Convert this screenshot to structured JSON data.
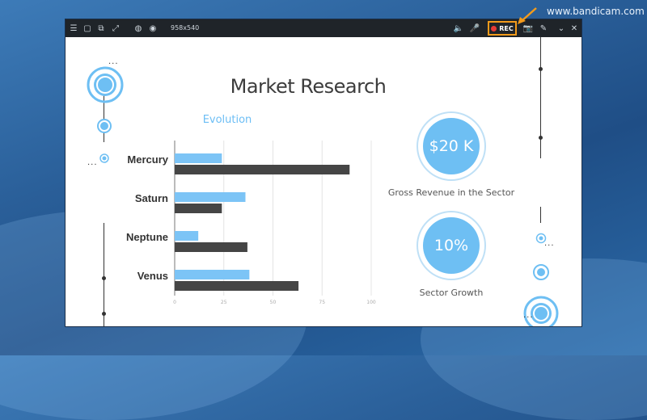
{
  "watermark": "www.bandicam.com",
  "toolbar": {
    "icons": [
      "menu-icon",
      "window-icon",
      "region-icon",
      "crop-icon",
      "mouse-icon",
      "webcam-icon"
    ],
    "size_label": "958x540",
    "right_icons": [
      "speaker-icon",
      "microphone-icon"
    ],
    "rec_label": "REC",
    "after_icons": [
      "camera-icon",
      "pencil-icon",
      "collapse-icon",
      "close-icon"
    ]
  },
  "slide": {
    "title": "Market Research",
    "chart_title": "Evolution",
    "stat1": {
      "value": "$20 K",
      "label": "Gross Revenue in the Sector"
    },
    "stat2": {
      "value": "10%",
      "label": "Sector Growth"
    },
    "ellipsis": "···"
  },
  "colors": {
    "accent": "#6ebff3",
    "dark": "#454545",
    "rec": "#f39b1b"
  },
  "chart_data": {
    "type": "bar",
    "orientation": "horizontal",
    "title": "Evolution",
    "categories": [
      "Mercury",
      "Saturn",
      "Neptune",
      "Venus"
    ],
    "series": [
      {
        "color": "#7cc4f6",
        "values": [
          24,
          36,
          12,
          38
        ]
      },
      {
        "color": "#454545",
        "values": [
          89,
          24,
          37,
          63
        ]
      }
    ],
    "xlim": [
      0,
      100
    ],
    "xticks": [
      "0",
      "25",
      "50",
      "75",
      "100"
    ],
    "grid": true
  }
}
